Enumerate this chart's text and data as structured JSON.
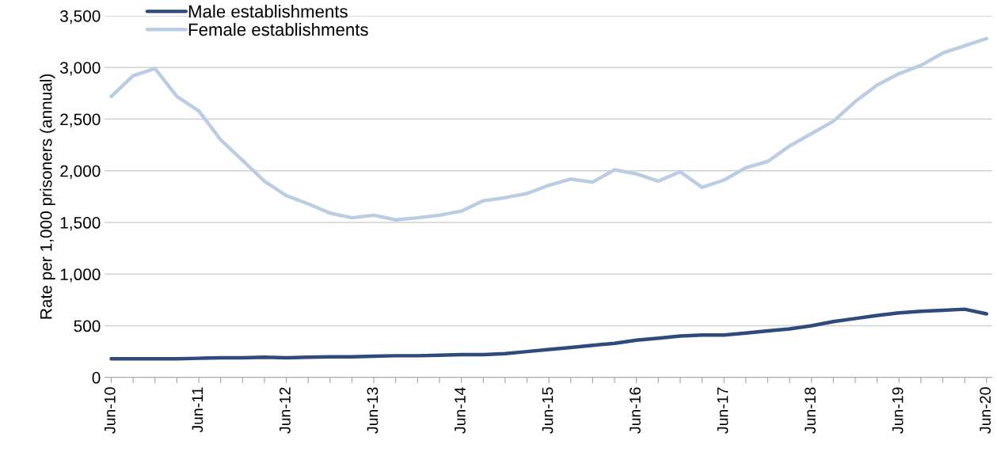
{
  "chart_data": {
    "type": "line",
    "ylabel": "Rate per 1,000 prisoners (annual)",
    "categories": [
      "Jun-10",
      null,
      null,
      null,
      "Jun-11",
      null,
      null,
      null,
      "Jun-12",
      null,
      null,
      null,
      "Jun-13",
      null,
      null,
      null,
      "Jun-14",
      null,
      null,
      null,
      "Jun-15",
      null,
      null,
      null,
      "Jun-16",
      null,
      null,
      null,
      "Jun-17",
      null,
      null,
      null,
      "Jun-18",
      null,
      null,
      null,
      "Jun-19",
      null,
      null,
      null,
      "Jun-20"
    ],
    "series": [
      {
        "name": "Male establishments",
        "color": "#2f4b7c",
        "values": [
          180,
          180,
          180,
          180,
          185,
          190,
          190,
          195,
          190,
          195,
          200,
          200,
          205,
          210,
          210,
          215,
          220,
          220,
          230,
          250,
          270,
          290,
          310,
          330,
          360,
          380,
          400,
          410,
          410,
          430,
          450,
          470,
          500,
          540,
          570,
          600,
          625,
          640,
          650,
          660,
          615
        ]
      },
      {
        "name": "Female establishments",
        "color": "#bccde3",
        "values": [
          2720,
          2920,
          2990,
          2720,
          2580,
          2300,
          2100,
          1900,
          1760,
          1680,
          1590,
          1545,
          1570,
          1525,
          1545,
          1570,
          1610,
          1710,
          1740,
          1780,
          1860,
          1920,
          1890,
          2010,
          1970,
          1900,
          1990,
          1840,
          1910,
          2030,
          2090,
          2240,
          2360,
          2480,
          2670,
          2830,
          2940,
          3020,
          3140,
          3210,
          3280
        ]
      }
    ],
    "ylim": [
      0,
      3500
    ],
    "yticks": [
      {
        "value": 0,
        "label": "0"
      },
      {
        "value": 500,
        "label": "500"
      },
      {
        "value": 1000,
        "label": "1,000"
      },
      {
        "value": 1500,
        "label": "1,500"
      },
      {
        "value": 2000,
        "label": "2,000"
      },
      {
        "value": 2500,
        "label": "2,500"
      },
      {
        "value": 3000,
        "label": "3,000"
      },
      {
        "value": 3500,
        "label": "3,500"
      }
    ],
    "grid": "y",
    "legend": "top left",
    "line_style": "solid",
    "marker": "none"
  }
}
